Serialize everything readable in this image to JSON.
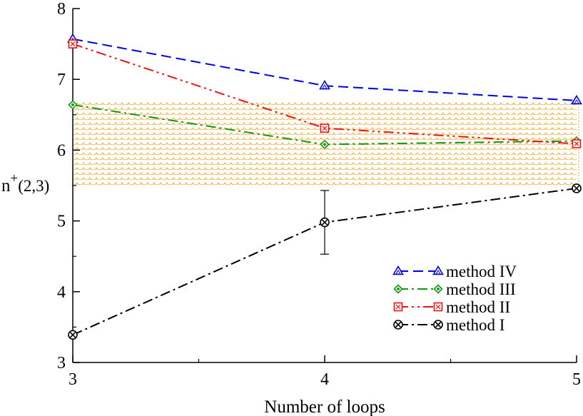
{
  "chart_data": {
    "type": "line",
    "title": "",
    "xlabel": "Number of loops",
    "ylabel": {
      "main": "n",
      "sup": "+",
      "args": "(2,3)"
    },
    "x": [
      3,
      4,
      5
    ],
    "xticks": [
      "3",
      "4",
      "5"
    ],
    "yticks": [
      "3",
      "4",
      "5",
      "6",
      "7",
      "8"
    ],
    "xlim": [
      3,
      5
    ],
    "ylim": [
      3,
      8
    ],
    "band": {
      "y_low": 5.5,
      "y_high": 6.7,
      "color": "#f5a623",
      "label": ""
    },
    "series": [
      {
        "name": "method IV",
        "values": [
          7.57,
          6.91,
          6.7
        ],
        "color": "#0000dd",
        "marker": "triangle",
        "dash": "14,7"
      },
      {
        "name": "method III",
        "values": [
          6.64,
          6.08,
          6.13
        ],
        "color": "#119911",
        "marker": "diamond",
        "dash": "14,5,3,5"
      },
      {
        "name": "method II",
        "values": [
          7.5,
          6.31,
          6.09
        ],
        "color": "#ee1111",
        "marker": "square",
        "dash": "14,5,3,5,3,5"
      },
      {
        "name": "method I",
        "values": [
          3.39,
          4.98,
          5.46
        ],
        "color": "#000000",
        "marker": "circle",
        "dash": "14,5,3,5",
        "errors": [
          0,
          0.45,
          0
        ]
      }
    ],
    "legend_position": "lower-right",
    "grid": false
  }
}
